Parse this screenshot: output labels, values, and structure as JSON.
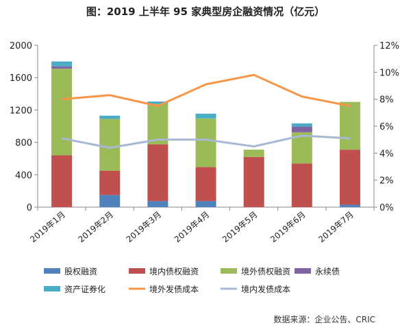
{
  "chart_data": {
    "type": "bar",
    "title": "图：2019 上半年 95 家典型房企融资情况（亿元）",
    "categories": [
      "2019年1月",
      "2019年2月",
      "2019年3月",
      "2019年4月",
      "2019年5月",
      "2019年6月",
      "2019年7月"
    ],
    "stacked": true,
    "ylim": [
      0,
      2000
    ],
    "yticks": [
      "0",
      "400",
      "800",
      "1200",
      "1600",
      "2000"
    ],
    "y2lim": [
      0,
      12
    ],
    "y2ticks": [
      "0%",
      "2%",
      "4%",
      "6%",
      "8%",
      "10%",
      "12%"
    ],
    "series": [
      {
        "name": "股权融资",
        "kind": "bar",
        "color": "#4f81bd",
        "values": [
          0,
          150,
          75,
          75,
          0,
          0,
          30
        ]
      },
      {
        "name": "境内债权融资",
        "kind": "bar",
        "color": "#c0504d",
        "values": [
          640,
          300,
          700,
          420,
          620,
          540,
          680
        ]
      },
      {
        "name": "境外债权融资",
        "kind": "bar",
        "color": "#9bbb59",
        "values": [
          1070,
          640,
          500,
          600,
          90,
          385,
          590
        ]
      },
      {
        "name": "永续债",
        "kind": "bar",
        "color": "#8064a2",
        "values": [
          30,
          0,
          0,
          0,
          0,
          70,
          0
        ]
      },
      {
        "name": "资产证券化",
        "kind": "bar",
        "color": "#4bacc6",
        "values": [
          60,
          40,
          30,
          60,
          0,
          40,
          0
        ]
      },
      {
        "name": "境外发债成本",
        "kind": "line",
        "axis": "right",
        "color": "#f79646",
        "values": [
          8.0,
          8.3,
          7.5,
          9.1,
          9.8,
          8.2,
          7.5
        ]
      },
      {
        "name": "境内发债成本",
        "kind": "line",
        "axis": "right",
        "color": "#a6b8d3",
        "values": [
          5.1,
          4.4,
          5.0,
          5.0,
          4.5,
          5.3,
          5.1
        ]
      }
    ],
    "grid": false,
    "legend": "bottom",
    "source": "数据来源：企业公告、CRIC"
  }
}
